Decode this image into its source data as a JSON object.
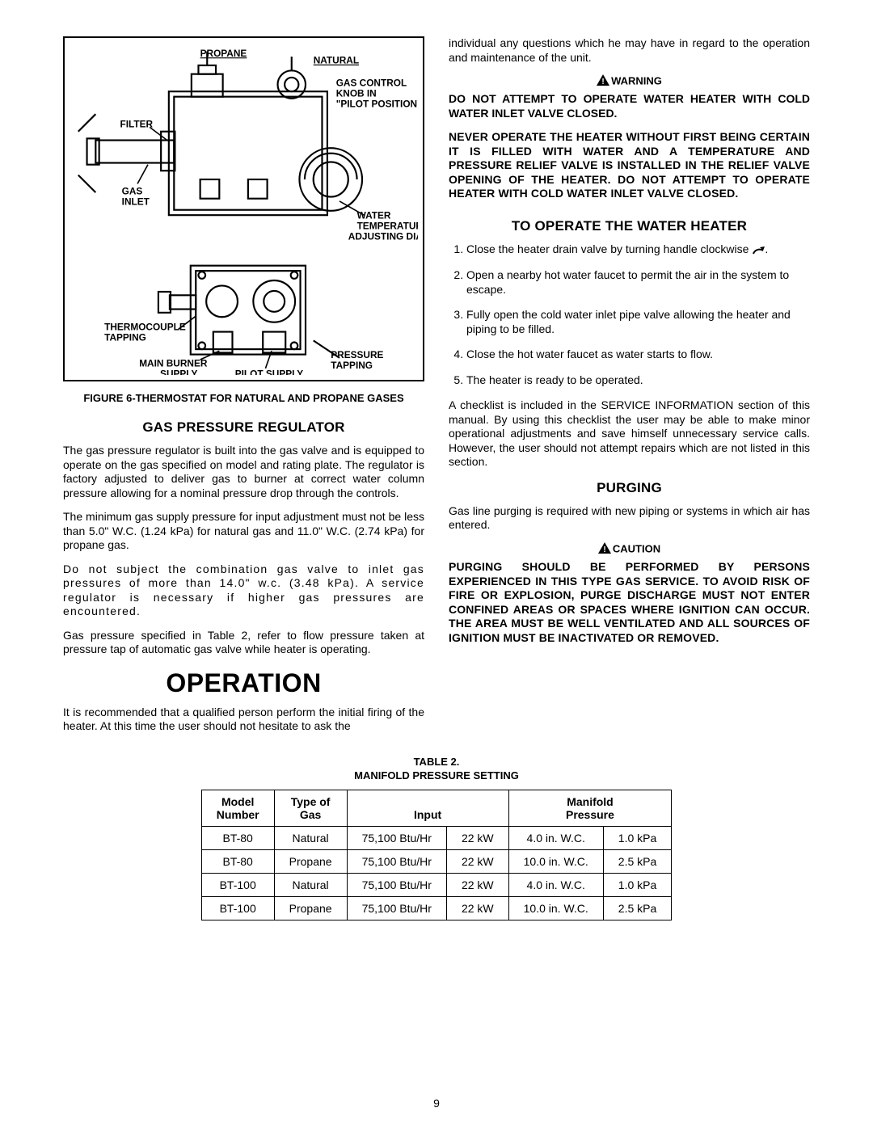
{
  "figure": {
    "labels": {
      "propane": "PROPANE",
      "natural": "NATURAL",
      "gas_control": "GAS CONTROL\nKNOB IN\n\"PILOT POSITION\"",
      "filter": "FILTER",
      "gas_inlet": "GAS\nINLET",
      "water_temp": "WATER\nTEMPERATURE\nADJUSTING DIAL",
      "thermocouple": "THERMOCOUPLE\nTAPPING",
      "main_burner": "MAIN BURNER\nSUPPLY",
      "pilot_supply": "PILOT SUPPLY",
      "pressure_tapping": "PRESSURE\nTAPPING"
    },
    "caption": "FIGURE 6-THERMOSTAT FOR NATURAL AND PROPANE GASES"
  },
  "sections": {
    "gas_regulator": {
      "heading": "GAS PRESSURE REGULATOR",
      "p1": "The gas pressure regulator is built into the gas valve and is equipped to operate on the gas specified on model and rating plate.  The regulator is factory adjusted to deliver gas to burner at correct water column pressure allowing for a nominal pressure drop through the controls.",
      "p2": "The minimum gas supply pressure for input adjustment must not be less than 5.0\" W.C. (1.24 kPa) for natural gas and 11.0\" W.C. (2.74 kPa) for propane gas.",
      "p3": "Do not subject the combination gas valve to inlet gas pressures of more than 14.0\" w.c. (3.48 kPa).  A service regulator is necessary if higher gas pressures are encountered.",
      "p4": "Gas pressure specified in Table 2, refer to flow pressure taken at pressure tap of automatic gas valve while heater is operating."
    },
    "operation": {
      "heading": "OPERATION",
      "p1a": "It is recommended that a qualified person perform the initial firing of the heater.  At this time the user should not hesitate to ask the",
      "p1b": "individual any questions which he may have in regard to the operation and maintenance of the unit.",
      "warning_label": "WARNING",
      "warning1": "DO NOT ATTEMPT TO OPERATE WATER HEATER WITH COLD WATER INLET VALVE CLOSED.",
      "warning2": "NEVER OPERATE THE HEATER WITHOUT FIRST BEING CERTAIN IT IS FILLED WITH WATER AND A TEMPERATURE AND PRESSURE RELIEF VALVE IS INSTALLED IN THE RELIEF VALVE OPENING OF THE HEATER.  DO NOT ATTEMPT TO OPERATE HEATER WITH COLD WATER INLET VALVE CLOSED."
    },
    "to_operate": {
      "heading": "TO OPERATE THE WATER HEATER",
      "steps": [
        "Close the heater drain valve by turning handle clockwise",
        "Open a nearby hot water faucet to permit the air in the system to escape.",
        "Fully open the cold water inlet pipe valve allowing the heater and piping to be filled.",
        "Close the hot water faucet as water starts to flow.",
        "The heater is ready to be operated."
      ],
      "checklist": "A checklist is included in the SERVICE INFORMATION section of this manual.  By using this checklist the user may be able to make minor operational adjustments and save himself unnecessary service calls.  However, the user should not attempt repairs which are not listed in this section."
    },
    "purging": {
      "heading": "PURGING",
      "p1": "Gas line purging is required with new piping or systems in which air has entered.",
      "caution_label": "CAUTION",
      "caution": "PURGING SHOULD BE PERFORMED BY PERSONS EXPERIENCED IN THIS TYPE GAS SERVICE.  TO AVOID RISK OF FIRE OR EXPLOSION, PURGE DISCHARGE MUST NOT ENTER CONFINED AREAS OR SPACES WHERE IGNITION CAN OCCUR.  THE AREA MUST BE WELL VENTILATED AND ALL SOURCES OF IGNITION MUST BE INACTIVATED OR REMOVED."
    }
  },
  "table": {
    "caption_l1": "TABLE 2.",
    "caption_l2": "MANIFOLD PRESSURE SETTING",
    "headers": {
      "model": "Model\nNumber",
      "gas": "Type of\nGas",
      "input": "Input",
      "pressure": "Manifold\nPressure"
    },
    "rows": [
      [
        "BT-80",
        "Natural",
        "75,100 Btu/Hr",
        "22 kW",
        "4.0 in. W.C.",
        "1.0 kPa"
      ],
      [
        "BT-80",
        "Propane",
        "75,100 Btu/Hr",
        "22 kW",
        "10.0 in. W.C.",
        "2.5 kPa"
      ],
      [
        "BT-100",
        "Natural",
        "75,100 Btu/Hr",
        "22 kW",
        "4.0 in. W.C.",
        "1.0 kPa"
      ],
      [
        "BT-100",
        "Propane",
        "75,100 Btu/Hr",
        "22 kW",
        "10.0 in. W.C.",
        "2.5 kPa"
      ]
    ]
  },
  "page_number": "9"
}
